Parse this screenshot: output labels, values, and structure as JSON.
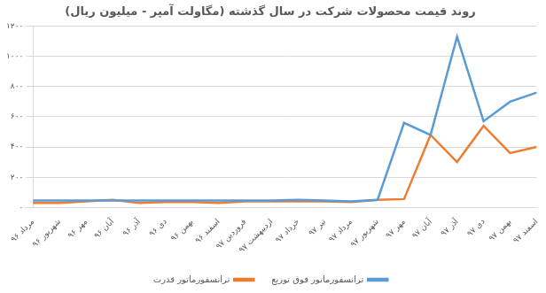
{
  "chart_data": {
    "type": "line",
    "title": "روند قیمت محصولات شرکت در سال گذشته (مگاولت آمپر - میلیون ریال)",
    "categories": [
      "مرداد ۹۶",
      "شهریور ۹۶",
      "مهر ۹۶",
      "آبان ۹۶",
      "آذر ۹۶",
      "دی ۹۶",
      "بهمن ۹۶",
      "اسفند ۹۶",
      "فروردین ۹۷",
      "اردیبهشت ۹۷",
      "خرداد ۹۷",
      "تیر ۹۷",
      "مرداد ۹۷",
      "شهریور ۹۷",
      "مهر ۹۷",
      "آبان ۹۷",
      "آذر ۹۷",
      "دی ۹۷",
      "بهمن ۹۷",
      "اسفند ۹۷"
    ],
    "series": [
      {
        "name": "ترانسفورماتور فوق توزیع",
        "color": "#5b9bd5",
        "values": [
          45,
          45,
          45,
          45,
          45,
          45,
          45,
          45,
          45,
          45,
          50,
          45,
          40,
          50,
          560,
          480,
          1130,
          570,
          700,
          760
        ]
      },
      {
        "name": "ترانسفورماتور قدرت",
        "color": "#ed7d31",
        "values": [
          30,
          30,
          40,
          50,
          30,
          35,
          35,
          30,
          40,
          40,
          40,
          40,
          35,
          50,
          55,
          480,
          300,
          540,
          360,
          400
        ]
      }
    ],
    "ylim": [
      0,
      1200
    ],
    "yticks": [
      {
        "value": 0,
        "label": "۰"
      },
      {
        "value": 200,
        "label": "۲۰۰"
      },
      {
        "value": 400,
        "label": "۴۰۰"
      },
      {
        "value": 600,
        "label": "۶۰۰"
      },
      {
        "value": 800,
        "label": "۸۰۰"
      },
      {
        "value": 1000,
        "label": "۱۰۰۰"
      },
      {
        "value": 1200,
        "label": "۱۲۰۰"
      }
    ],
    "grid": true,
    "legend": "bottom"
  }
}
